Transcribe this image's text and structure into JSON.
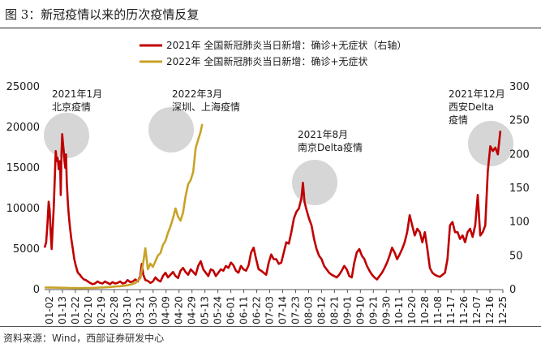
{
  "figure": {
    "title": "图 3：新冠疫情以来的历次疫情反复",
    "source": "资料来源：Wind，西部证券研发中心"
  },
  "colors": {
    "series_2021": "#c00000",
    "series_2022": "#c9a227",
    "circle": "#c8c8c8",
    "axis": "#555555",
    "text": "#1a1a1a"
  },
  "chart_data": {
    "type": "line",
    "x_ticks": [
      "01-02",
      "01-13",
      "01-22",
      "02-10",
      "02-19",
      "02-28",
      "03-10",
      "03-21",
      "03-30",
      "04-09",
      "04-20",
      "04-29",
      "05-13",
      "05-24",
      "06-01",
      "06-11",
      "06-22",
      "07-03",
      "07-14",
      "07-23",
      "08-03",
      "08-12",
      "08-21",
      "09-01",
      "09-10",
      "09-21",
      "09-30",
      "10-11",
      "10-20",
      "10-28",
      "11-08",
      "11-17",
      "11-26",
      "12-07",
      "12-16",
      "12-25"
    ],
    "y_left": {
      "min": 0,
      "max": 25000,
      "ticks": [
        0,
        5000,
        10000,
        15000,
        20000,
        25000
      ]
    },
    "y_right": {
      "min": 0,
      "max": 300,
      "ticks": [
        0,
        50,
        100,
        150,
        200,
        250,
        300
      ]
    },
    "series": [
      {
        "name": "2021年 全国新冠肺炎当日新增：确诊+无症状（右轴）",
        "axis": "right",
        "color": "#c00000",
        "points": [
          [
            0,
            62
          ],
          [
            0.3,
            70
          ],
          [
            0.55,
            95
          ],
          [
            0.8,
            130
          ],
          [
            1.0,
            118
          ],
          [
            1.2,
            85
          ],
          [
            1.4,
            60
          ],
          [
            1.6,
            90
          ],
          [
            1.8,
            120
          ],
          [
            2.0,
            160
          ],
          [
            2.2,
            205
          ],
          [
            2.4,
            190
          ],
          [
            2.6,
            195
          ],
          [
            2.8,
            178
          ],
          [
            3.0,
            190
          ],
          [
            3.1,
            185
          ],
          [
            3.2,
            140
          ],
          [
            3.35,
            200
          ],
          [
            3.5,
            230
          ],
          [
            3.65,
            215
          ],
          [
            3.8,
            205
          ],
          [
            3.95,
            190
          ],
          [
            4.1,
            180
          ],
          [
            4.25,
            200
          ],
          [
            4.4,
            160
          ],
          [
            4.6,
            130
          ],
          [
            4.8,
            110
          ],
          [
            5.0,
            95
          ],
          [
            5.3,
            75
          ],
          [
            5.6,
            60
          ],
          [
            5.9,
            45
          ],
          [
            6.2,
            35
          ],
          [
            6.6,
            25
          ],
          [
            7.0,
            22
          ],
          [
            7.4,
            18
          ],
          [
            7.8,
            15
          ],
          [
            8.2,
            14
          ],
          [
            8.6,
            12
          ],
          [
            9.0,
            10
          ],
          [
            9.5,
            8
          ],
          [
            10,
            9
          ],
          [
            10.5,
            12
          ],
          [
            11,
            10
          ],
          [
            11.5,
            9
          ],
          [
            12,
            12
          ],
          [
            12.5,
            10
          ],
          [
            13,
            8
          ],
          [
            13.5,
            11
          ],
          [
            14,
            9
          ],
          [
            14.5,
            10
          ],
          [
            15,
            12
          ],
          [
            15.5,
            9
          ],
          [
            16,
            10
          ],
          [
            16.5,
            14
          ],
          [
            17,
            11
          ],
          [
            17.5,
            12
          ],
          [
            18,
            15
          ],
          [
            18.5,
            12
          ],
          [
            19,
            20
          ],
          [
            19.3,
            38
          ],
          [
            19.6,
            22
          ],
          [
            20,
            14
          ],
          [
            20.5,
            13
          ],
          [
            21,
            10
          ],
          [
            21.5,
            12
          ],
          [
            22,
            18
          ],
          [
            22.5,
            14
          ],
          [
            23,
            12
          ],
          [
            23.5,
            20
          ],
          [
            24,
            25
          ],
          [
            24.5,
            18
          ],
          [
            25,
            22
          ],
          [
            25.5,
            26
          ],
          [
            26,
            20
          ],
          [
            26.5,
            17
          ],
          [
            27,
            28
          ],
          [
            27.5,
            32
          ],
          [
            28,
            26
          ],
          [
            28.5,
            22
          ],
          [
            29,
            30
          ],
          [
            29.5,
            26
          ],
          [
            30,
            22
          ],
          [
            30.5,
            35
          ],
          [
            31,
            42
          ],
          [
            31.5,
            30
          ],
          [
            32,
            25
          ],
          [
            32.5,
            20
          ],
          [
            33,
            30
          ],
          [
            33.5,
            28
          ],
          [
            34,
            20
          ],
          [
            34.5,
            25
          ],
          [
            35,
            30
          ],
          [
            35.5,
            28
          ],
          [
            36,
            35
          ],
          [
            36.5,
            32
          ],
          [
            37,
            40
          ],
          [
            37.5,
            36
          ],
          [
            38,
            28
          ],
          [
            38.5,
            25
          ],
          [
            39,
            35
          ],
          [
            39.5,
            30
          ],
          [
            40,
            28
          ],
          [
            40.5,
            36
          ],
          [
            41,
            55
          ],
          [
            41.5,
            62
          ],
          [
            42,
            45
          ],
          [
            42.5,
            30
          ],
          [
            43,
            28
          ],
          [
            43.5,
            25
          ],
          [
            44,
            22
          ],
          [
            44.5,
            40
          ],
          [
            45,
            52
          ],
          [
            45.5,
            45
          ],
          [
            46,
            45
          ],
          [
            46.5,
            38
          ],
          [
            47,
            40
          ],
          [
            47.5,
            55
          ],
          [
            48,
            70
          ],
          [
            48.5,
            68
          ],
          [
            49,
            85
          ],
          [
            49.5,
            105
          ],
          [
            50,
            115
          ],
          [
            50.5,
            120
          ],
          [
            51,
            135
          ],
          [
            51.3,
            158
          ],
          [
            51.6,
            130
          ],
          [
            52,
            118
          ],
          [
            52.5,
            105
          ],
          [
            53,
            95
          ],
          [
            53.5,
            75
          ],
          [
            54,
            60
          ],
          [
            54.5,
            50
          ],
          [
            55,
            45
          ],
          [
            55.5,
            35
          ],
          [
            56,
            30
          ],
          [
            56.5,
            25
          ],
          [
            57,
            22
          ],
          [
            57.5,
            20
          ],
          [
            58,
            18
          ],
          [
            58.5,
            22
          ],
          [
            59,
            28
          ],
          [
            59.5,
            35
          ],
          [
            60,
            30
          ],
          [
            60.5,
            20
          ],
          [
            61,
            18
          ],
          [
            61.5,
            40
          ],
          [
            62,
            55
          ],
          [
            62.5,
            60
          ],
          [
            63,
            50
          ],
          [
            63.5,
            45
          ],
          [
            64,
            35
          ],
          [
            64.5,
            28
          ],
          [
            65,
            22
          ],
          [
            65.5,
            18
          ],
          [
            66,
            15
          ],
          [
            66.5,
            20
          ],
          [
            67,
            25
          ],
          [
            67.5,
            32
          ],
          [
            68,
            40
          ],
          [
            68.5,
            50
          ],
          [
            69,
            62
          ],
          [
            69.5,
            55
          ],
          [
            70,
            45
          ],
          [
            70.5,
            52
          ],
          [
            71,
            60
          ],
          [
            71.5,
            70
          ],
          [
            72,
            85
          ],
          [
            72.5,
            110
          ],
          [
            73,
            95
          ],
          [
            73.5,
            80
          ],
          [
            74,
            90
          ],
          [
            74.5,
            85
          ],
          [
            75,
            70
          ],
          [
            75.5,
            85
          ],
          [
            76,
            60
          ],
          [
            76.5,
            32
          ],
          [
            77,
            25
          ],
          [
            77.5,
            22
          ],
          [
            78,
            20
          ],
          [
            78.5,
            19
          ],
          [
            79,
            22
          ],
          [
            79.5,
            25
          ],
          [
            80,
            45
          ],
          [
            80.5,
            95
          ],
          [
            81,
            100
          ],
          [
            81.5,
            85
          ],
          [
            82,
            85
          ],
          [
            82.5,
            75
          ],
          [
            83,
            80
          ],
          [
            83.5,
            70
          ],
          [
            84,
            85
          ],
          [
            84.5,
            90
          ],
          [
            85,
            78
          ],
          [
            85.5,
            95
          ],
          [
            86,
            140
          ],
          [
            86.5,
            80
          ],
          [
            87,
            85
          ],
          [
            87.5,
            95
          ],
          [
            88,
            175
          ],
          [
            88.5,
            212
          ],
          [
            89,
            205
          ],
          [
            89.5,
            210
          ],
          [
            90,
            200
          ],
          [
            90.5,
            235
          ]
        ]
      },
      {
        "name": "2022年 全国新冠肺炎当日新增：确诊+无症状",
        "axis": "left",
        "color": "#c9a227",
        "points": [
          [
            0,
            250
          ],
          [
            1,
            260
          ],
          [
            2,
            240
          ],
          [
            3,
            230
          ],
          [
            4,
            220
          ],
          [
            5,
            200
          ],
          [
            6,
            190
          ],
          [
            7,
            180
          ],
          [
            8,
            190
          ],
          [
            9,
            200
          ],
          [
            10,
            220
          ],
          [
            11,
            250
          ],
          [
            12,
            280
          ],
          [
            13,
            320
          ],
          [
            14,
            380
          ],
          [
            15,
            420
          ],
          [
            16,
            480
          ],
          [
            17,
            600
          ],
          [
            18,
            800
          ],
          [
            19,
            1400
          ],
          [
            19.5,
            3000
          ],
          [
            20,
            5100
          ],
          [
            20.5,
            2500
          ],
          [
            21,
            3200
          ],
          [
            21.5,
            2800
          ],
          [
            22,
            3500
          ],
          [
            22.5,
            4200
          ],
          [
            23,
            4500
          ],
          [
            23.5,
            5500
          ],
          [
            24,
            6000
          ],
          [
            24.5,
            7000
          ],
          [
            25,
            7800
          ],
          [
            25.5,
            8800
          ],
          [
            26,
            10000
          ],
          [
            26.5,
            9000
          ],
          [
            27,
            8500
          ],
          [
            27.5,
            9500
          ],
          [
            28,
            11500
          ],
          [
            28.5,
            13000
          ],
          [
            29,
            13500
          ],
          [
            29.5,
            14500
          ],
          [
            30,
            17500
          ],
          [
            30.5,
            18500
          ],
          [
            31,
            19500
          ],
          [
            31.3,
            20400
          ]
        ]
      }
    ],
    "annotations": [
      {
        "label_line1": "2021年1月",
        "label_line2": "北京疫情",
        "label_line3": ""
      },
      {
        "label_line1": "2022年3月",
        "label_line2": "深圳、上海疫情",
        "label_line3": ""
      },
      {
        "label_line1": "2021年8月",
        "label_line2": "南京Delta疫情",
        "label_line3": ""
      },
      {
        "label_line1": "2021年12月",
        "label_line2": "西安Delta",
        "label_line3": "疫情"
      }
    ]
  }
}
